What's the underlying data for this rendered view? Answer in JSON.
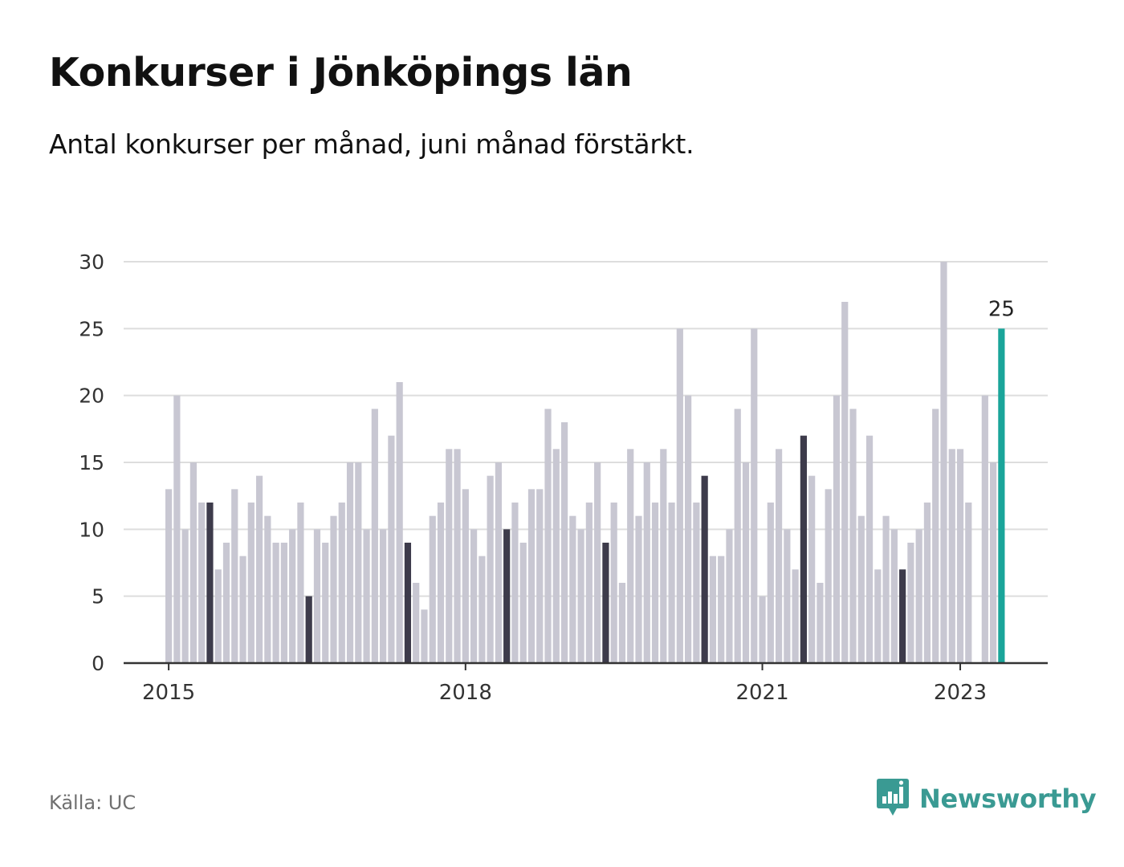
{
  "title": "Konkurser i Jönköpings län",
  "subtitle": "Antal konkurser per månad, juni månad förstärkt.",
  "source": "Källa: UC",
  "brand": {
    "name": "Newsworthy",
    "icon": "newsworthy-logo-icon",
    "color": "#3a9a93"
  },
  "colors": {
    "bar": "#c8c7d2",
    "highlight_bar": "#3d3b4b",
    "latest_bar": "#1aa59a",
    "grid": "#dddddd",
    "axis": "#333333"
  },
  "chart_data": {
    "type": "bar",
    "title": "Konkurser i Jönköpings län",
    "subtitle": "Antal konkurser per månad, juni månad förstärkt.",
    "xlabel": "",
    "ylabel": "",
    "ylim": [
      0,
      30
    ],
    "yticks": [
      0,
      5,
      10,
      15,
      20,
      25,
      30
    ],
    "grid": true,
    "start": "2015-01",
    "xticks": [
      {
        "label": "2015",
        "month": "2015-01"
      },
      {
        "label": "2018",
        "month": "2018-01"
      },
      {
        "label": "2021",
        "month": "2021-01"
      },
      {
        "label": "2023",
        "month": "2023-01"
      }
    ],
    "highlight_month": "June",
    "latest_label": "25",
    "values": [
      13,
      20,
      10,
      15,
      12,
      12,
      7,
      9,
      13,
      8,
      12,
      14,
      11,
      9,
      9,
      10,
      12,
      5,
      10,
      9,
      11,
      12,
      15,
      15,
      10,
      19,
      10,
      17,
      21,
      9,
      6,
      4,
      11,
      12,
      16,
      16,
      13,
      10,
      8,
      14,
      15,
      10,
      12,
      9,
      13,
      13,
      19,
      16,
      18,
      11,
      10,
      12,
      15,
      9,
      12,
      6,
      16,
      11,
      15,
      12,
      16,
      12,
      25,
      20,
      12,
      14,
      8,
      8,
      10,
      19,
      15,
      25,
      5,
      12,
      16,
      10,
      7,
      17,
      14,
      6,
      13,
      20,
      27,
      19,
      11,
      17,
      7,
      11,
      10,
      7,
      9,
      10,
      12,
      19,
      30,
      16,
      16,
      12,
      0,
      20,
      15,
      25
    ]
  }
}
